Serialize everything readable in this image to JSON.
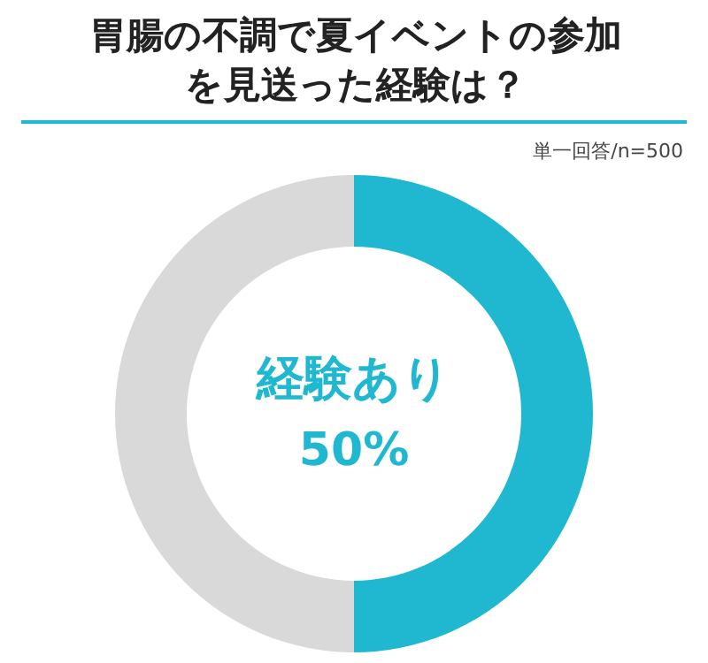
{
  "chart_data": {
    "type": "donut",
    "title": "胃腸の不調で夏イベントの参加を見送った経験は？",
    "annotations": [
      "単一回答/n=500"
    ],
    "categories": [
      "経験あり",
      null
    ],
    "values": [
      50,
      50
    ],
    "colors": [
      "#1fb8d0",
      "#d9d9d9"
    ],
    "value_labels": [
      "50%",
      null
    ]
  }
}
